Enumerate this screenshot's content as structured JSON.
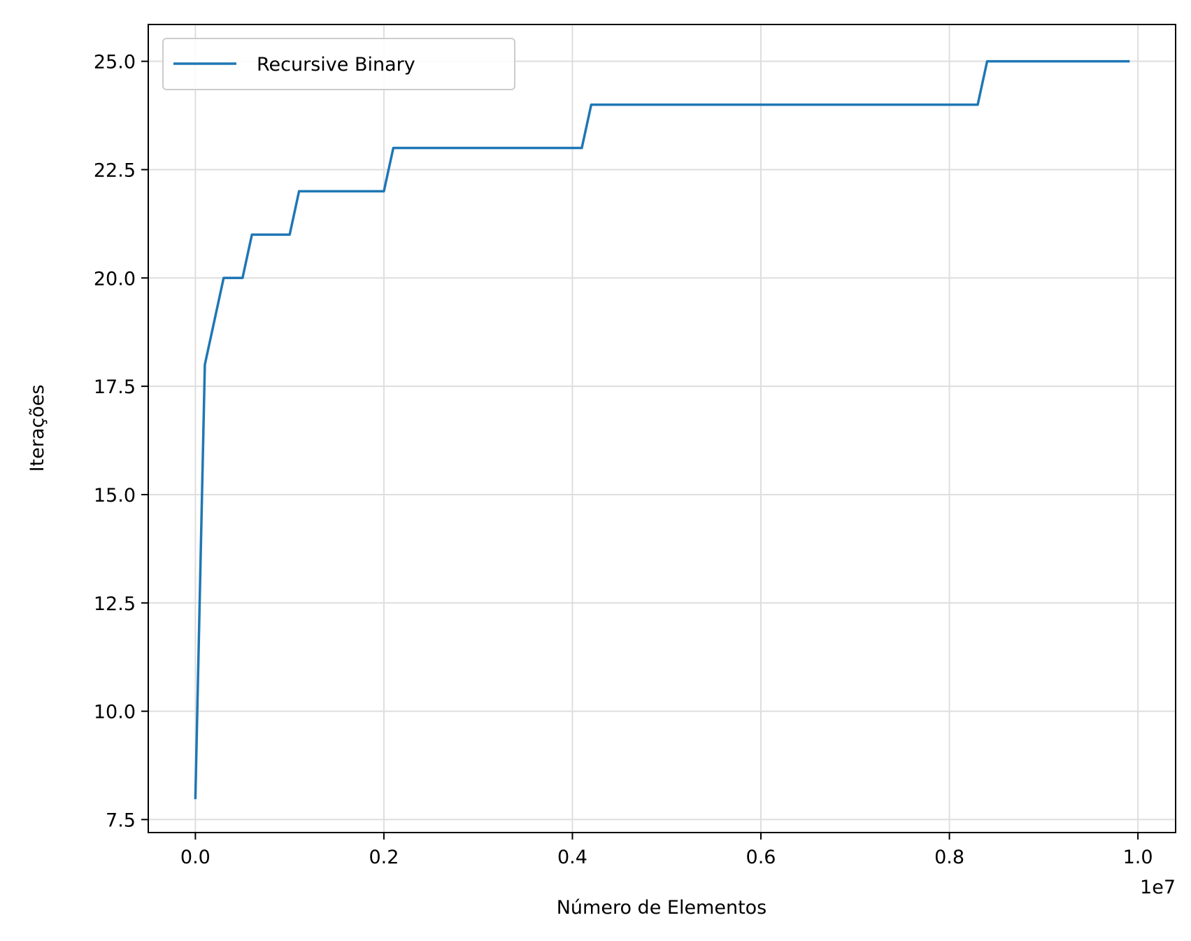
{
  "chart_data": {
    "type": "line",
    "xlabel": "Número de Elementos",
    "ylabel": "Iterações",
    "x_offset_text": "1e7",
    "xlim": [
      -0.05,
      1.04
    ],
    "ylim": [
      7.2,
      25.85
    ],
    "x_ticks": [
      0.0,
      0.2,
      0.4,
      0.6,
      0.8,
      1.0
    ],
    "x_tick_labels": [
      "0.0",
      "0.2",
      "0.4",
      "0.6",
      "0.8",
      "1.0"
    ],
    "y_ticks": [
      7.5,
      10.0,
      12.5,
      15.0,
      17.5,
      20.0,
      22.5,
      25.0
    ],
    "y_tick_labels": [
      "7.5",
      "10.0",
      "12.5",
      "15.0",
      "17.5",
      "20.0",
      "22.5",
      "25.0"
    ],
    "grid": true,
    "legend_position": "upper-left",
    "series": [
      {
        "name": "Recursive Binary",
        "color": "#1f77b4",
        "x": [
          0.0,
          0.01,
          0.03,
          0.05,
          0.06,
          0.1,
          0.11,
          0.2,
          0.21,
          0.41,
          0.42,
          0.83,
          0.84,
          0.99
        ],
        "y": [
          8,
          18,
          20,
          20,
          21,
          21,
          22,
          22,
          23,
          23,
          24,
          24,
          25,
          25
        ]
      }
    ]
  }
}
